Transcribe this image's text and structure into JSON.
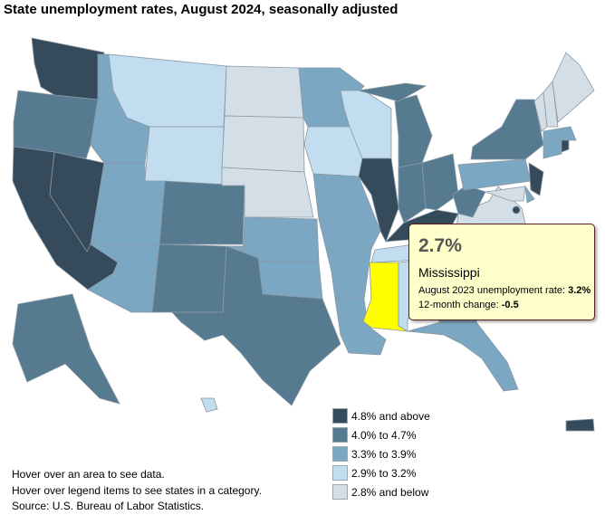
{
  "title": "State unemployment rates, August 2024, seasonally adjusted",
  "legend": [
    {
      "label": "4.8% and above",
      "color": "#354b5b"
    },
    {
      "label": "4.0% to 4.7%",
      "color": "#567b91"
    },
    {
      "label": "3.3% to 3.9%",
      "color": "#7ba7c3"
    },
    {
      "label": "2.9% to 3.2%",
      "color": "#c1ddef"
    },
    {
      "label": "2.8% and below",
      "color": "#d3dee7"
    }
  ],
  "highlight_color": "#ffff00",
  "tooltip": {
    "rate": "2.7%",
    "state": "Mississippi",
    "prev_label": "August 2023 unemployment rate: ",
    "prev_value": "3.2%",
    "change_label": "12-month change: ",
    "change_value": "-0.5"
  },
  "notes": [
    "Hover over an area to see data.",
    "Hover over legend items to see states in a category.",
    "Source: U.S. Bureau of Labor Statistics."
  ],
  "states": {
    "WA": 0,
    "OR": 1,
    "CA": 0,
    "NV": 0,
    "ID": 2,
    "MT": 3,
    "WY": 3,
    "UT": 2,
    "AZ": 2,
    "CO": 1,
    "NM": 1,
    "ND": 4,
    "SD": 4,
    "NE": 4,
    "KS": 2,
    "OK": 2,
    "TX": 1,
    "MN": 2,
    "IA": 3,
    "MO": 2,
    "AR": 2,
    "LA": 2,
    "WI": 3,
    "IL": 0,
    "MI": 1,
    "IN": 1,
    "OH": 1,
    "KY": 0,
    "TN": 3,
    "MS": "highlight",
    "AL": 3,
    "GA": 2,
    "FL": 2,
    "SC": 1,
    "NC": 2,
    "VA": 4,
    "WV": 1,
    "PA": 2,
    "NY": 1,
    "NJ": 0,
    "MD": 4,
    "DE": 2,
    "VT": 4,
    "NH": 4,
    "ME": 4,
    "MA": 2,
    "CT": 2,
    "RI": 0,
    "DC": 0,
    "AK": 1,
    "HI": 3,
    "PR": 0
  }
}
